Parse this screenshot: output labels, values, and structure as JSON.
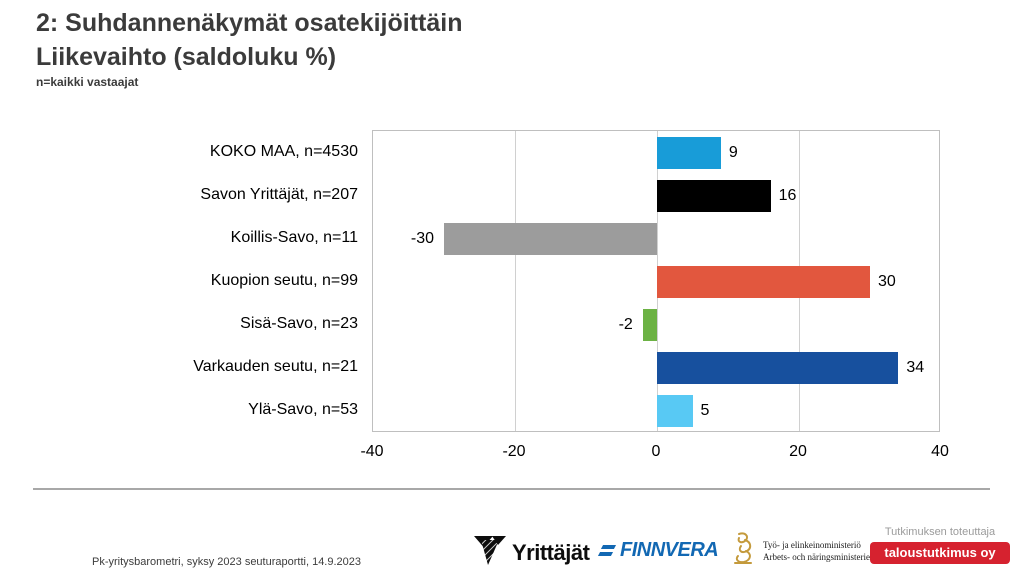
{
  "title": {
    "line1": "2: Suhdannenäkymät osatekijöittäin",
    "line2": "Liikevaihto (saldoluku %)",
    "note": "n=kaikki vastaajat"
  },
  "chart_data": {
    "type": "bar",
    "orientation": "horizontal",
    "title": "2: Suhdannenäkymät osatekijöittäin — Liikevaihto (saldoluku %)",
    "categories": [
      "KOKO MAA, n=4530",
      "Savon Yrittäjät, n=207",
      "Koillis-Savo, n=11",
      "Kuopion seutu, n=99",
      "Sisä-Savo, n=23",
      "Varkauden seutu, n=21",
      "Ylä-Savo, n=53"
    ],
    "values": [
      9,
      16,
      -30,
      30,
      -2,
      34,
      5
    ],
    "colors": [
      "#189cd8",
      "#000000",
      "#9c9c9c",
      "#e2573e",
      "#6cb244",
      "#17509e",
      "#58c9f4"
    ],
    "xlim": [
      -40,
      40
    ],
    "xticks": [
      -40,
      -20,
      0,
      20,
      40
    ],
    "grid": true,
    "legend": "none",
    "value_labels": true
  },
  "footer": {
    "left_text": "Pk-yritysbarometri,  syksy 2023 seuturaportti,  14.9.2023",
    "logos": {
      "yrittajat": "Yrittäjät",
      "finnvera": "FINNVERA",
      "ministry_line1": "Työ- ja elinkeinoministeriö",
      "ministry_line2": "Arbets- och näringsministeriet",
      "research_label": "Tutkimuksen toteuttaja",
      "research_badge": "taloustutkimus oy"
    },
    "colors": {
      "research_badge_bg": "#d6222f",
      "finnvera_blue": "#1268b3",
      "ministry_gold": "#c49a3c"
    }
  }
}
